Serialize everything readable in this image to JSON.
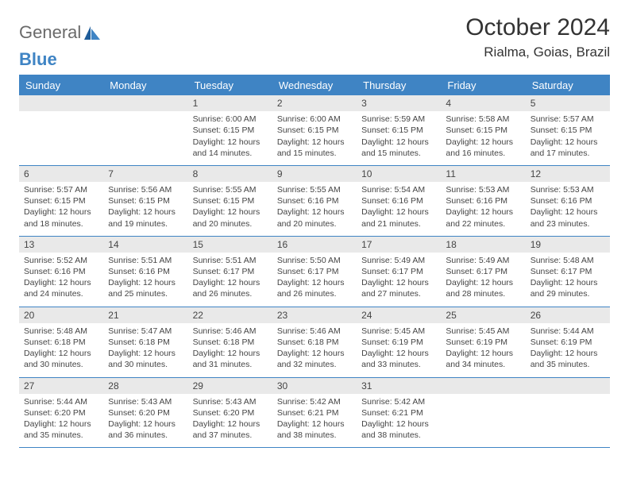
{
  "brand": {
    "part1": "General",
    "part2": "Blue"
  },
  "title": "October 2024",
  "location": "Rialma, Goias, Brazil",
  "colors": {
    "accent": "#3f84c4",
    "header_text": "#ffffff",
    "daynum_bg": "#e9e9e9",
    "text": "#454545",
    "background": "#ffffff"
  },
  "typography": {
    "title_size_pt": 22,
    "body_size_pt": 8,
    "header_size_pt": 10
  },
  "day_headers": [
    "Sunday",
    "Monday",
    "Tuesday",
    "Wednesday",
    "Thursday",
    "Friday",
    "Saturday"
  ],
  "weeks": [
    [
      null,
      null,
      {
        "n": "1",
        "sunrise": "Sunrise: 6:00 AM",
        "sunset": "Sunset: 6:15 PM",
        "daylight": "Daylight: 12 hours and 14 minutes."
      },
      {
        "n": "2",
        "sunrise": "Sunrise: 6:00 AM",
        "sunset": "Sunset: 6:15 PM",
        "daylight": "Daylight: 12 hours and 15 minutes."
      },
      {
        "n": "3",
        "sunrise": "Sunrise: 5:59 AM",
        "sunset": "Sunset: 6:15 PM",
        "daylight": "Daylight: 12 hours and 15 minutes."
      },
      {
        "n": "4",
        "sunrise": "Sunrise: 5:58 AM",
        "sunset": "Sunset: 6:15 PM",
        "daylight": "Daylight: 12 hours and 16 minutes."
      },
      {
        "n": "5",
        "sunrise": "Sunrise: 5:57 AM",
        "sunset": "Sunset: 6:15 PM",
        "daylight": "Daylight: 12 hours and 17 minutes."
      }
    ],
    [
      {
        "n": "6",
        "sunrise": "Sunrise: 5:57 AM",
        "sunset": "Sunset: 6:15 PM",
        "daylight": "Daylight: 12 hours and 18 minutes."
      },
      {
        "n": "7",
        "sunrise": "Sunrise: 5:56 AM",
        "sunset": "Sunset: 6:15 PM",
        "daylight": "Daylight: 12 hours and 19 minutes."
      },
      {
        "n": "8",
        "sunrise": "Sunrise: 5:55 AM",
        "sunset": "Sunset: 6:15 PM",
        "daylight": "Daylight: 12 hours and 20 minutes."
      },
      {
        "n": "9",
        "sunrise": "Sunrise: 5:55 AM",
        "sunset": "Sunset: 6:16 PM",
        "daylight": "Daylight: 12 hours and 20 minutes."
      },
      {
        "n": "10",
        "sunrise": "Sunrise: 5:54 AM",
        "sunset": "Sunset: 6:16 PM",
        "daylight": "Daylight: 12 hours and 21 minutes."
      },
      {
        "n": "11",
        "sunrise": "Sunrise: 5:53 AM",
        "sunset": "Sunset: 6:16 PM",
        "daylight": "Daylight: 12 hours and 22 minutes."
      },
      {
        "n": "12",
        "sunrise": "Sunrise: 5:53 AM",
        "sunset": "Sunset: 6:16 PM",
        "daylight": "Daylight: 12 hours and 23 minutes."
      }
    ],
    [
      {
        "n": "13",
        "sunrise": "Sunrise: 5:52 AM",
        "sunset": "Sunset: 6:16 PM",
        "daylight": "Daylight: 12 hours and 24 minutes."
      },
      {
        "n": "14",
        "sunrise": "Sunrise: 5:51 AM",
        "sunset": "Sunset: 6:16 PM",
        "daylight": "Daylight: 12 hours and 25 minutes."
      },
      {
        "n": "15",
        "sunrise": "Sunrise: 5:51 AM",
        "sunset": "Sunset: 6:17 PM",
        "daylight": "Daylight: 12 hours and 26 minutes."
      },
      {
        "n": "16",
        "sunrise": "Sunrise: 5:50 AM",
        "sunset": "Sunset: 6:17 PM",
        "daylight": "Daylight: 12 hours and 26 minutes."
      },
      {
        "n": "17",
        "sunrise": "Sunrise: 5:49 AM",
        "sunset": "Sunset: 6:17 PM",
        "daylight": "Daylight: 12 hours and 27 minutes."
      },
      {
        "n": "18",
        "sunrise": "Sunrise: 5:49 AM",
        "sunset": "Sunset: 6:17 PM",
        "daylight": "Daylight: 12 hours and 28 minutes."
      },
      {
        "n": "19",
        "sunrise": "Sunrise: 5:48 AM",
        "sunset": "Sunset: 6:17 PM",
        "daylight": "Daylight: 12 hours and 29 minutes."
      }
    ],
    [
      {
        "n": "20",
        "sunrise": "Sunrise: 5:48 AM",
        "sunset": "Sunset: 6:18 PM",
        "daylight": "Daylight: 12 hours and 30 minutes."
      },
      {
        "n": "21",
        "sunrise": "Sunrise: 5:47 AM",
        "sunset": "Sunset: 6:18 PM",
        "daylight": "Daylight: 12 hours and 30 minutes."
      },
      {
        "n": "22",
        "sunrise": "Sunrise: 5:46 AM",
        "sunset": "Sunset: 6:18 PM",
        "daylight": "Daylight: 12 hours and 31 minutes."
      },
      {
        "n": "23",
        "sunrise": "Sunrise: 5:46 AM",
        "sunset": "Sunset: 6:18 PM",
        "daylight": "Daylight: 12 hours and 32 minutes."
      },
      {
        "n": "24",
        "sunrise": "Sunrise: 5:45 AM",
        "sunset": "Sunset: 6:19 PM",
        "daylight": "Daylight: 12 hours and 33 minutes."
      },
      {
        "n": "25",
        "sunrise": "Sunrise: 5:45 AM",
        "sunset": "Sunset: 6:19 PM",
        "daylight": "Daylight: 12 hours and 34 minutes."
      },
      {
        "n": "26",
        "sunrise": "Sunrise: 5:44 AM",
        "sunset": "Sunset: 6:19 PM",
        "daylight": "Daylight: 12 hours and 35 minutes."
      }
    ],
    [
      {
        "n": "27",
        "sunrise": "Sunrise: 5:44 AM",
        "sunset": "Sunset: 6:20 PM",
        "daylight": "Daylight: 12 hours and 35 minutes."
      },
      {
        "n": "28",
        "sunrise": "Sunrise: 5:43 AM",
        "sunset": "Sunset: 6:20 PM",
        "daylight": "Daylight: 12 hours and 36 minutes."
      },
      {
        "n": "29",
        "sunrise": "Sunrise: 5:43 AM",
        "sunset": "Sunset: 6:20 PM",
        "daylight": "Daylight: 12 hours and 37 minutes."
      },
      {
        "n": "30",
        "sunrise": "Sunrise: 5:42 AM",
        "sunset": "Sunset: 6:21 PM",
        "daylight": "Daylight: 12 hours and 38 minutes."
      },
      {
        "n": "31",
        "sunrise": "Sunrise: 5:42 AM",
        "sunset": "Sunset: 6:21 PM",
        "daylight": "Daylight: 12 hours and 38 minutes."
      },
      null,
      null
    ]
  ]
}
